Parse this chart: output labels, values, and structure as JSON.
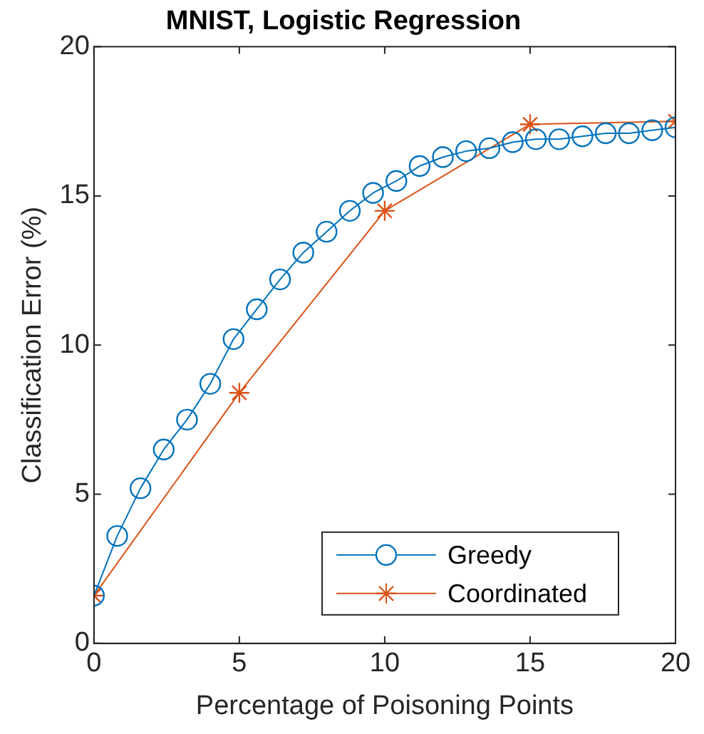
{
  "chart_data": {
    "type": "line",
    "title": "MNIST, Logistic Regression",
    "xlabel": "Percentage of Poisoning Points",
    "ylabel": "Classification Error (%)",
    "xlim": [
      0,
      20
    ],
    "xticks": [
      0,
      5,
      10,
      15,
      20
    ],
    "ylim": [
      0,
      20
    ],
    "yticks": [
      0,
      5,
      10,
      15,
      20
    ],
    "legend": "bottom right",
    "grid": false,
    "series": [
      {
        "name": "Greedy",
        "color": "#0072bd",
        "marker": "circle",
        "x": [
          0,
          0.8,
          1.6,
          2.4,
          3.2,
          4.0,
          4.8,
          5.6,
          6.4,
          7.2,
          8.0,
          8.8,
          9.6,
          10.4,
          11.2,
          12.0,
          12.8,
          13.6,
          14.4,
          15.2,
          16.0,
          16.8,
          17.6,
          18.4,
          19.2,
          20
        ],
        "values": [
          1.6,
          3.6,
          5.2,
          6.5,
          7.5,
          8.7,
          10.2,
          11.2,
          12.2,
          13.1,
          13.8,
          14.5,
          15.1,
          15.5,
          16.0,
          16.3,
          16.5,
          16.6,
          16.8,
          16.9,
          16.9,
          17.0,
          17.1,
          17.1,
          17.2,
          17.3
        ]
      },
      {
        "name": "Coordinated",
        "color": "#d95319",
        "marker": "cross",
        "x": [
          0,
          5,
          10,
          15,
          20
        ],
        "values": [
          1.6,
          8.4,
          14.5,
          17.4,
          17.5
        ]
      }
    ]
  }
}
